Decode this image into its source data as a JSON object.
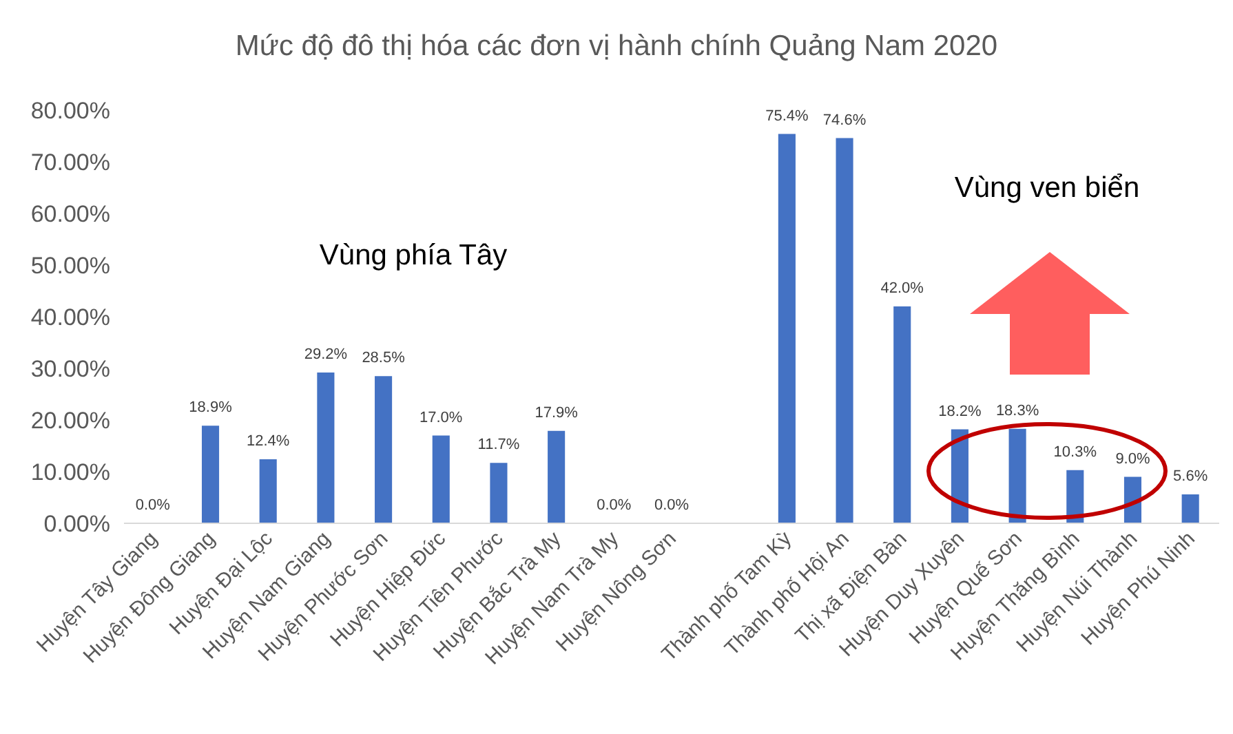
{
  "chart_data": {
    "type": "bar",
    "title": "Mức độ đô thị hóa các đơn vị hành chính Quảng Nam 2020",
    "categories": [
      "Huyện Tây Giang",
      "Huyện Đông Giang",
      "Huyện Đại Lộc",
      "Huyện Nam Giang",
      "Huyện Phước Sơn",
      "Huyện Hiệp Đức",
      "Huyện Tiên Phước",
      "Huyện Bắc Trà My",
      "Huyện Nam Trà My",
      "Huyện Nông Sơn",
      null,
      "Thành phố Tam Kỳ",
      "Thành phố Hội An",
      "Thị xã Điện Bàn",
      "Huyện Duy Xuyên",
      "Huyện Quế Sơn",
      "Huyện Thăng Bình",
      "Huyện Núi Thành",
      "Huyện Phú Ninh"
    ],
    "values": [
      0,
      18.9,
      12.4,
      29.2,
      28.5,
      17.0,
      11.7,
      17.9,
      0,
      0,
      null,
      75.4,
      74.6,
      42.0,
      18.2,
      18.3,
      10.3,
      9.0,
      5.6
    ],
    "value_labels": [
      "0.0%",
      "18.9%",
      "12.4%",
      "29.2%",
      "28.5%",
      "17.0%",
      "11.7%",
      "17.9%",
      "0.0%",
      "0.0%",
      null,
      "75.4%",
      "74.6%",
      "42.0%",
      "18.2%",
      "18.3%",
      "10.3%",
      "9.0%",
      "5.6%"
    ],
    "color": "#4472c4",
    "ylim": [
      0,
      80
    ],
    "yticks": [
      {
        "value": 0,
        "label": "0.00%"
      },
      {
        "value": 10,
        "label": "10.00%"
      },
      {
        "value": 20,
        "label": "20.00%"
      },
      {
        "value": 30,
        "label": "30.00%"
      },
      {
        "value": 40,
        "label": "40.00%"
      },
      {
        "value": 50,
        "label": "50.00%"
      },
      {
        "value": 60,
        "label": "60.00%"
      },
      {
        "value": 70,
        "label": "70.00%"
      },
      {
        "value": 80,
        "label": "80.00%"
      }
    ],
    "grid": false,
    "annotations": [
      "Vùng phía Tây",
      "Vùng ven biển"
    ]
  }
}
